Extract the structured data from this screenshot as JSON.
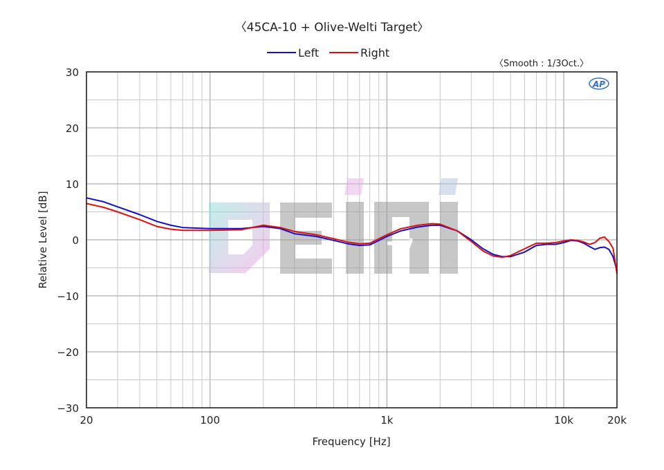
{
  "chart_data": {
    "type": "line",
    "title": "〈45CA-10 + Olive-Welti Target〉",
    "note": "〈Smooth : 1/3Oct.〉",
    "logo_text": "AP",
    "watermark_text": "EIMI",
    "xlabel": "Frequency [Hz]",
    "ylabel": "Relative Level [dB]",
    "x_scale": "log",
    "xlim": [
      20,
      20000
    ],
    "ylim": [
      -30,
      30
    ],
    "x_ticks": [
      20,
      100,
      1000,
      10000,
      20000
    ],
    "x_tick_labels": [
      "20",
      "100",
      "1k",
      "10k",
      "20k"
    ],
    "y_ticks": [
      30,
      20,
      10,
      0,
      -10,
      -20,
      -30
    ],
    "y_tick_labels": [
      "30",
      "20",
      "10",
      "0",
      "−10",
      "−20",
      "−30"
    ],
    "grid": true,
    "legend_position": "top-center",
    "series": [
      {
        "name": "Left",
        "color": "#1010c8",
        "points": [
          [
            20,
            7.5
          ],
          [
            25,
            6.8
          ],
          [
            30,
            5.9
          ],
          [
            40,
            4.5
          ],
          [
            50,
            3.3
          ],
          [
            60,
            2.6
          ],
          [
            70,
            2.2
          ],
          [
            100,
            2.0
          ],
          [
            150,
            2.0
          ],
          [
            200,
            2.4
          ],
          [
            250,
            2.0
          ],
          [
            300,
            1.1
          ],
          [
            400,
            0.6
          ],
          [
            500,
            -0.1
          ],
          [
            600,
            -0.7
          ],
          [
            700,
            -1.0
          ],
          [
            800,
            -0.9
          ],
          [
            1000,
            0.6
          ],
          [
            1200,
            1.6
          ],
          [
            1500,
            2.3
          ],
          [
            1800,
            2.6
          ],
          [
            2000,
            2.6
          ],
          [
            2500,
            1.6
          ],
          [
            3000,
            0.0
          ],
          [
            3500,
            -1.6
          ],
          [
            4000,
            -2.6
          ],
          [
            4500,
            -3.0
          ],
          [
            5000,
            -3.0
          ],
          [
            6000,
            -2.2
          ],
          [
            7000,
            -1.0
          ],
          [
            8000,
            -0.8
          ],
          [
            9000,
            -0.8
          ],
          [
            10000,
            -0.5
          ],
          [
            11000,
            -0.1
          ],
          [
            12000,
            -0.2
          ],
          [
            13000,
            -0.6
          ],
          [
            14000,
            -1.2
          ],
          [
            15000,
            -1.7
          ],
          [
            16000,
            -1.4
          ],
          [
            17000,
            -1.3
          ],
          [
            18000,
            -1.7
          ],
          [
            19000,
            -3.0
          ],
          [
            20000,
            -5.5
          ]
        ]
      },
      {
        "name": "Right",
        "color": "#dd1010",
        "points": [
          [
            20,
            6.5
          ],
          [
            25,
            5.8
          ],
          [
            30,
            5.0
          ],
          [
            40,
            3.6
          ],
          [
            50,
            2.4
          ],
          [
            60,
            1.9
          ],
          [
            70,
            1.7
          ],
          [
            100,
            1.7
          ],
          [
            150,
            1.8
          ],
          [
            200,
            2.6
          ],
          [
            250,
            2.2
          ],
          [
            300,
            1.5
          ],
          [
            400,
            0.9
          ],
          [
            500,
            0.2
          ],
          [
            600,
            -0.4
          ],
          [
            700,
            -0.7
          ],
          [
            800,
            -0.6
          ],
          [
            1000,
            0.9
          ],
          [
            1200,
            2.0
          ],
          [
            1500,
            2.6
          ],
          [
            1800,
            2.9
          ],
          [
            2000,
            2.8
          ],
          [
            2500,
            1.6
          ],
          [
            3000,
            -0.3
          ],
          [
            3500,
            -2.0
          ],
          [
            4000,
            -2.9
          ],
          [
            4500,
            -3.1
          ],
          [
            5000,
            -2.8
          ],
          [
            6000,
            -1.6
          ],
          [
            7000,
            -0.6
          ],
          [
            8000,
            -0.6
          ],
          [
            9000,
            -0.5
          ],
          [
            10000,
            -0.2
          ],
          [
            11000,
            0.0
          ],
          [
            12000,
            -0.1
          ],
          [
            13000,
            -0.4
          ],
          [
            14000,
            -0.8
          ],
          [
            15000,
            -0.5
          ],
          [
            16000,
            0.3
          ],
          [
            17000,
            0.5
          ],
          [
            18000,
            -0.3
          ],
          [
            19000,
            -1.5
          ],
          [
            20000,
            -6.0
          ]
        ]
      }
    ]
  }
}
